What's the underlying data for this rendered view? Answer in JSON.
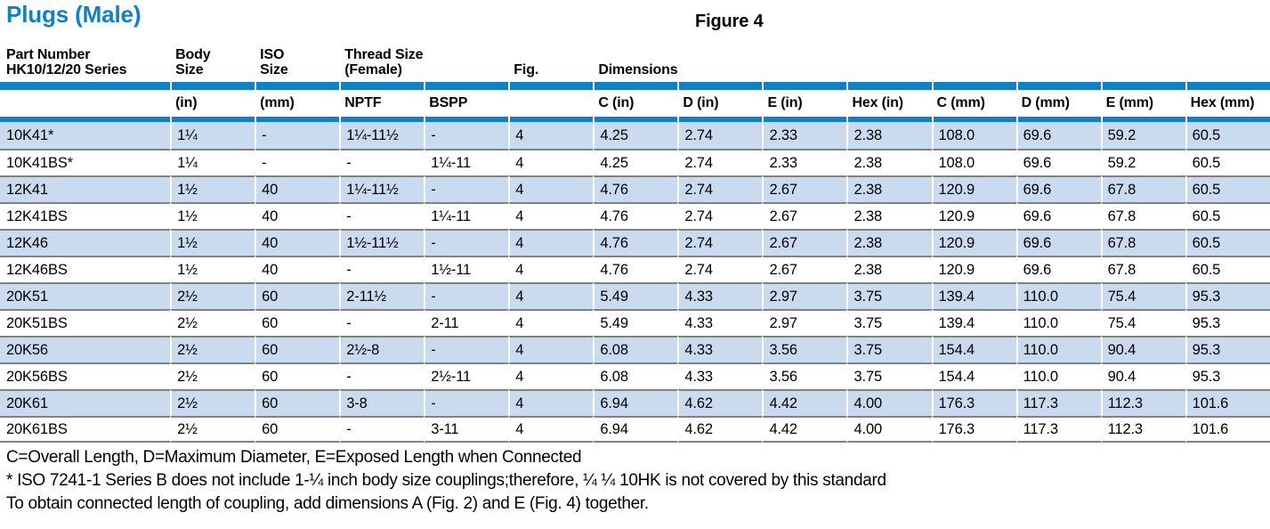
{
  "page": {
    "title": "Plugs (Male)",
    "figure_label": "Figure 4",
    "footnotes": [
      "C=Overall Length, D=Maximum Diameter, E=Exposed Length when Connected",
      "* ISO 7241-1 Series B does not include 1-¼ inch body size couplings;therefore, ¼ ¼ 10HK is not covered by this standard",
      "To obtain connected length of coupling, add dimensions A (Fig. 2) and E (Fig. 4) together."
    ]
  },
  "colors": {
    "accent_blue": "#1480c4",
    "row_highlight_blue": "#cbdbef",
    "separator_gray": "#818181"
  },
  "table": {
    "headers": {
      "part_number_line1": "Part Number",
      "part_number_line2": "HK10/12/20 Series",
      "body_size_line1": "Body",
      "body_size_line2": "Size",
      "iso_size_line1": "ISO",
      "iso_size_line2": "Size",
      "thread_size_line1": "Thread Size",
      "thread_size_line2": "(Female)",
      "fig": "Fig.",
      "dimensions": "Dimensions"
    },
    "subheaders": [
      "",
      "(in)",
      "(mm)",
      "NPTF",
      "BSPP",
      "",
      "C (in)",
      "D (in)",
      "E (in)",
      "Hex (in)",
      "C (mm)",
      "D (mm)",
      "E (mm)",
      "Hex (mm)"
    ],
    "rows": [
      {
        "shaded": true,
        "cells": [
          "10K41*",
          "1¼",
          "-",
          "1¼-11½",
          "-",
          "4",
          "4.25",
          "2.74",
          "2.33",
          "2.38",
          "108.0",
          "69.6",
          "59.2",
          "60.5"
        ]
      },
      {
        "shaded": false,
        "cells": [
          "10K41BS*",
          "1¼",
          "-",
          "-",
          "1¼-11",
          "4",
          "4.25",
          "2.74",
          "2.33",
          "2.38",
          "108.0",
          "69.6",
          "59.2",
          "60.5"
        ]
      },
      {
        "shaded": true,
        "cells": [
          "12K41",
          "1½",
          "40",
          "1¼-11½",
          "-",
          "4",
          "4.76",
          "2.74",
          "2.67",
          "2.38",
          "120.9",
          "69.6",
          "67.8",
          "60.5"
        ]
      },
      {
        "shaded": false,
        "cells": [
          "12K41BS",
          "1½",
          "40",
          "-",
          "1¼-11",
          "4",
          "4.76",
          "2.74",
          "2.67",
          "2.38",
          "120.9",
          "69.6",
          "67.8",
          "60.5"
        ]
      },
      {
        "shaded": true,
        "cells": [
          "12K46",
          "1½",
          "40",
          "1½-11½",
          "-",
          "4",
          "4.76",
          "2.74",
          "2.67",
          "2.38",
          "120.9",
          "69.6",
          "67.8",
          "60.5"
        ]
      },
      {
        "shaded": false,
        "cells": [
          "12K46BS",
          "1½",
          "40",
          "-",
          "1½-11",
          "4",
          "4.76",
          "2.74",
          "2.67",
          "2.38",
          "120.9",
          "69.6",
          "67.8",
          "60.5"
        ]
      },
      {
        "shaded": true,
        "cells": [
          "20K51",
          "2½",
          "60",
          "2-11½",
          "-",
          "4",
          "5.49",
          "4.33",
          "2.97",
          "3.75",
          "139.4",
          "110.0",
          "75.4",
          "95.3"
        ]
      },
      {
        "shaded": false,
        "cells": [
          "20K51BS",
          "2½",
          "60",
          "-",
          "2-11",
          "4",
          "5.49",
          "4.33",
          "2.97",
          "3.75",
          "139.4",
          "110.0",
          "75.4",
          "95.3"
        ]
      },
      {
        "shaded": true,
        "cells": [
          "20K56",
          "2½",
          "60",
          "2½-8",
          "-",
          "4",
          "6.08",
          "4.33",
          "3.56",
          "3.75",
          "154.4",
          "110.0",
          "90.4",
          "95.3"
        ]
      },
      {
        "shaded": false,
        "cells": [
          "20K56BS",
          "2½",
          "60",
          "-",
          "2½-11",
          "4",
          "6.08",
          "4.33",
          "3.56",
          "3.75",
          "154.4",
          "110.0",
          "90.4",
          "95.3"
        ]
      },
      {
        "shaded": true,
        "cells": [
          "20K61",
          "2½",
          "60",
          "3-8",
          "-",
          "4",
          "6.94",
          "4.62",
          "4.42",
          "4.00",
          "176.3",
          "117.3",
          "112.3",
          "101.6"
        ]
      },
      {
        "shaded": false,
        "cells": [
          "20K61BS",
          "2½",
          "60",
          "-",
          "3-11",
          "4",
          "6.94",
          "4.62",
          "4.42",
          "4.00",
          "176.3",
          "117.3",
          "112.3",
          "101.6"
        ]
      }
    ]
  }
}
